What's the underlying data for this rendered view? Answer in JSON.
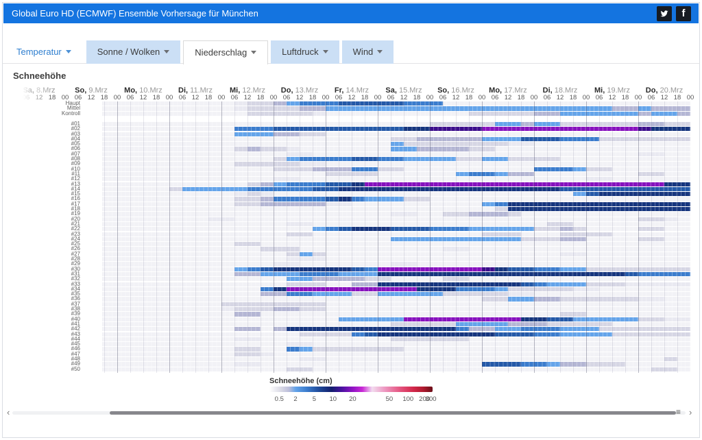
{
  "header": {
    "title": "Global Euro HD (ECMWF) Ensemble Vorhersage für München",
    "facebook_glyph": "f"
  },
  "tabs": [
    {
      "label": "Temperatur",
      "style": "link",
      "active": false
    },
    {
      "label": "Sonne / Wolken",
      "style": "box",
      "active": false
    },
    {
      "label": "Niederschlag",
      "style": "box",
      "active": true
    },
    {
      "label": "Luftdruck",
      "style": "box",
      "active": false
    },
    {
      "label": "Wind",
      "style": "box",
      "active": false
    }
  ],
  "section_title": "Schneehöhe",
  "accent_color": "#1474e0",
  "tab_bg_color": "#cbdff5",
  "scrollbar": {
    "left_arrow": "‹",
    "right_arrow": "›",
    "menu_icon": "≡"
  },
  "chart_data": {
    "type": "heatmap",
    "title": "Schneehöhe",
    "x_unit": "6h",
    "days": [
      {
        "dow": "Sa",
        "date": "8.Mrz"
      },
      {
        "dow": "So",
        "date": "9.Mrz"
      },
      {
        "dow": "Mo",
        "date": "10.Mrz"
      },
      {
        "dow": "Di",
        "date": "11.Mrz"
      },
      {
        "dow": "Mi",
        "date": "12.Mrz"
      },
      {
        "dow": "Do",
        "date": "13.Mrz"
      },
      {
        "dow": "Fr",
        "date": "14.Mrz"
      },
      {
        "dow": "Sa",
        "date": "15.Mrz"
      },
      {
        "dow": "So",
        "date": "16.Mrz"
      },
      {
        "dow": "Mo",
        "date": "17.Mrz"
      },
      {
        "dow": "Di",
        "date": "18.Mrz"
      },
      {
        "dow": "Mi",
        "date": "19.Mrz"
      },
      {
        "dow": "Do",
        "date": "20.Mrz"
      }
    ],
    "hours": [
      "00",
      "06",
      "12",
      "18"
    ],
    "palette": {
      "1": "#e9e9f1",
      "2": "#d6d6e4",
      "3": "#b4b6d4",
      "4": "#64a4ea",
      "5": "#3b7ccd",
      "6": "#2459a8",
      "7": "#16357e",
      "8": "#3c0d8c",
      "9": "#8711be"
    },
    "rows": [
      {
        "label": "Haupt",
        "cells": "000000000000000001223455566666555​0000000000000000000"
      },
      {
        "label": "Mittel",
        "cells": "0000000000000000012222334444444444444444444444334333"
      },
      {
        "label": "Kontroll",
        "cells": "0000000000000000002222210000000000022222334444443443"
      },
      {
        "label": "#01",
        "cells": "0000000000000000000000000000000022222443442222223322"
      },
      {
        "label": "#02",
        "cells": "0000000000000000055566666666667788889999999999998777"
      },
      {
        "label": "#03",
        "cells": "0000000000000000044433220000000000000000000000000000"
      },
      {
        "label": "#04",
        "cells": "0000000000000000000000000000022333334446665552222222"
      },
      {
        "label": "#05",
        "cells": "0000000000000000000000000000042222222211000000000000"
      },
      {
        "label": "#06",
        "cells": "0000000000000000023221000000044333322000000000000000"
      },
      {
        "label": "#07",
        "cells": "0000000000000000000001100000000000000000000000001100"
      },
      {
        "label": "#08",
        "cells": "0000000000000000000024555566554444224422220000000000"
      },
      {
        "label": "#09",
        "cells": "0000000000000000022222110000000000000000000000000000"
      },
      {
        "label": "#10",
        "cells": "0000000000000000000022233355220000000000555422000000"
      },
      {
        "label": "#11",
        "cells": "0000000000000000000000002222000000455433000000002200"
      },
      {
        "label": "#12",
        "cells": "0000000000000000000011000000000000000000000011000000"
      },
      {
        "label": "#13",
        "cells": "0000000000000000002345556679999999999999999999999977"
      },
      {
        "label": "#14",
        "cells": "0000000000002444445555566777777777777777776666666666"
      },
      {
        "label": "#15",
        "cells": "0000000000000000012100000000000000000000000467777777"
      },
      {
        "label": "#16",
        "cells": "0000000000000000022355556754442200000000000000000000"
      },
      {
        "label": "#17",
        "cells": "0000000000000000022333331100000000004577777777777777"
      },
      {
        "label": "#18",
        "cells": "0000000000000000000000000000000000000277777777777777"
      },
      {
        "label": "#19",
        "cells": "0000000000000000000000000000011002233320000000000000"
      },
      {
        "label": "#20",
        "cells": "0000000000000001100000000000000000000000000000002210"
      },
      {
        "label": "#21",
        "cells": "0000000000000000000001100000000000000000022000000000"
      },
      {
        "label": "#22",
        "cells": "0000000000000000000000045677766655544444223200002200"
      },
      {
        "label": "#23",
        "cells": "0000000000000000000002200000000000002220002222000000"
      },
      {
        "label": "#24",
        "cells": "0000000000000000000000000000044444444442223300002200"
      },
      {
        "label": "#25",
        "cells": "0000000000000000022000000000000000000000000000000000"
      },
      {
        "label": "#26",
        "cells": "0000000000000000000222000000000001100000000000000000"
      },
      {
        "label": "#27",
        "cells": "0000000000000000000002420000000000000000001100000000"
      },
      {
        "label": "#28",
        "cells": "0000000000000000000001110000000000000000000000000000"
      },
      {
        "label": "#29",
        "cells": "0000000000000000000011000000011000000000000000000000"
      },
      {
        "label": "#30",
        "cells": "0000000000000000045677777765999999998766554422222222"
      },
      {
        "label": "#31",
        "cells": "0000000000000000033444555444777777777777777777765555"
      },
      {
        "label": "#32",
        "cells": "0000000000000000000004433332200002200000000000000000"
      },
      {
        "label": "#33",
        "cells": "0000000000000000000002220033777777777776544422211111"
      },
      {
        "label": "#34",
        "cells": "0000000000000000000579999999999777555422222110000000"
      },
      {
        "label": "#35",
        "cells": "0000000000000000000335544422444442222211000000000000"
      },
      {
        "label": "#36",
        "cells": "0000000000000000000000000000000000002244332222221100"
      },
      {
        "label": "#37",
        "cells": "0000000000000000222222220000000000000000000000000000"
      },
      {
        "label": "#38",
        "cells": "0000000000000000122233220000000000000000000000000000"
      },
      {
        "label": "#39",
        "cells": "0000000000000000033000000000000000000000002200000000"
      },
      {
        "label": "#40",
        "cells": "0000000000000000000000000444449999999997766444442211"
      },
      {
        "label": "#41",
        "cells": "0000000000000000000000000000022222444433322222000000"
      },
      {
        "label": "#42",
        "cells": "0000000000000000033037777777777777533445554442222222"
      },
      {
        "label": "#43",
        "cells": "0000000000000000000000222256777777777666554444222222"
      },
      {
        "label": "#44",
        "cells": "0000000000000000011000000000022222200000000000000000"
      },
      {
        "label": "#45",
        "cells": "0000000000000000000001100000000000000000000000000000"
      },
      {
        "label": "#46",
        "cells": "0000000000000000022005422222220000000000000000000000"
      },
      {
        "label": "#47",
        "cells": "0000000000000000022100000000000000000000000000000000"
      },
      {
        "label": "#48",
        "cells": "0000000000000000000000110000000000000000000000000020"
      },
      {
        "label": "#49",
        "cells": "0000000000000000011000000000000000006665543322200000"
      },
      {
        "label": "#50",
        "cells": "0000000000000000000002200000000000000000000000000220"
      }
    ],
    "legend": {
      "title": "Schneehöhe (cm)",
      "ticks": [
        {
          "label": "0.5",
          "p": 6
        },
        {
          "label": "2",
          "p": 16
        },
        {
          "label": "5",
          "p": 27.5
        },
        {
          "label": "10",
          "p": 39
        },
        {
          "label": "20",
          "p": 51
        },
        {
          "label": "50",
          "p": 73.5
        },
        {
          "label": "100",
          "p": 85
        },
        {
          "label": "200",
          "p": 95
        },
        {
          "label": "300",
          "p": 99
        }
      ],
      "gradient": [
        {
          "p": 0,
          "c": "#ffffff"
        },
        {
          "p": 7,
          "c": "#dadae6"
        },
        {
          "p": 12,
          "c": "#bcbeda"
        },
        {
          "p": 16,
          "c": "#64a4ea"
        },
        {
          "p": 23,
          "c": "#3b7ccd"
        },
        {
          "p": 31,
          "c": "#1d4796"
        },
        {
          "p": 38,
          "c": "#131e6e"
        },
        {
          "p": 44,
          "c": "#46129e"
        },
        {
          "p": 51,
          "c": "#9013c4"
        },
        {
          "p": 57,
          "c": "#c92ad6"
        },
        {
          "p": 63,
          "c": "#f2dcef"
        },
        {
          "p": 70,
          "c": "#ee9ec6"
        },
        {
          "p": 80,
          "c": "#e45580"
        },
        {
          "p": 88,
          "c": "#d3294c"
        },
        {
          "p": 94,
          "c": "#b21b31"
        },
        {
          "p": 100,
          "c": "#6b0e18"
        }
      ]
    }
  }
}
